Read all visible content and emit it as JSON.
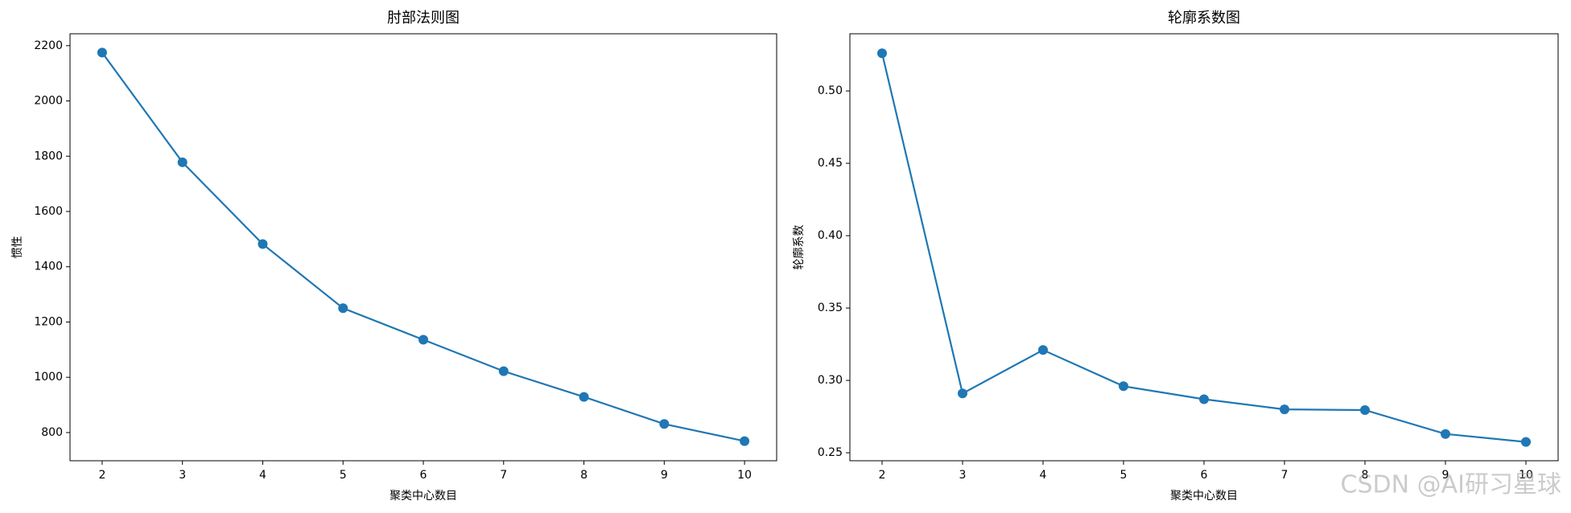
{
  "chart_data": [
    {
      "type": "line",
      "title": "肘部法则图",
      "x_label": "聚类中心数目",
      "y_label": "惯性",
      "x": [
        2,
        3,
        4,
        5,
        6,
        7,
        8,
        9,
        10
      ],
      "series": [
        {
          "color": "#1f77b4",
          "values": [
            2175,
            1778,
            1482,
            1250,
            1136,
            1022,
            929,
            831,
            769
          ]
        }
      ],
      "xlim": [
        1.6,
        10.4
      ],
      "xticks": [
        2,
        3,
        4,
        5,
        6,
        7,
        8,
        9,
        10
      ],
      "ylim": [
        698,
        2243
      ],
      "yticks": [
        800,
        1000,
        1200,
        1400,
        1600,
        1800,
        2000,
        2200
      ]
    },
    {
      "type": "line",
      "title": "轮廓系数图",
      "x_label": "聚类中心数目",
      "y_label": "轮廓系数",
      "x": [
        2,
        3,
        4,
        5,
        6,
        7,
        8,
        9,
        10
      ],
      "series": [
        {
          "color": "#1f77b4",
          "values": [
            0.526,
            0.291,
            0.321,
            0.296,
            0.287,
            0.28,
            0.2795,
            0.263,
            0.2575
          ]
        }
      ],
      "xlim": [
        1.6,
        10.4
      ],
      "xticks": [
        2,
        3,
        4,
        5,
        6,
        7,
        8,
        9,
        10
      ],
      "ylim": [
        0.2445,
        0.5395
      ],
      "yticks": [
        0.25,
        {
          "value": 0.3,
          "label": "0.30"
        },
        0.35,
        {
          "value": 0.4,
          "label": "0.40"
        },
        0.45,
        {
          "value": 0.5,
          "label": "0.50"
        }
      ]
    }
  ],
  "watermark": "CSDN @AI研习星球"
}
